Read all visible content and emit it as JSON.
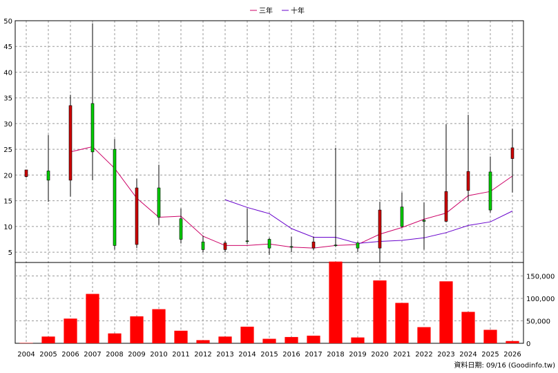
{
  "legend": {
    "items": [
      {
        "label": "三年",
        "color": "#cc0066"
      },
      {
        "label": "十年",
        "color": "#6600cc"
      }
    ]
  },
  "footer": {
    "source_label": "資料日期: 09/16 (Goodinfo.tw)"
  },
  "chart_data": {
    "type": "candlestick",
    "categories": [
      "2004",
      "2005",
      "2006",
      "2007",
      "2008",
      "2009",
      "2010",
      "2011",
      "2012",
      "2013",
      "2014",
      "2015",
      "2016",
      "2017",
      "2018",
      "2019",
      "2020",
      "2021",
      "2022",
      "2023",
      "2024",
      "2025",
      "2026"
    ],
    "price_axis": {
      "ylim": [
        3,
        50
      ],
      "ticks": [
        5,
        10,
        15,
        20,
        25,
        30,
        35,
        40,
        45,
        50
      ]
    },
    "volume_axis": {
      "ylim": [
        0,
        180000
      ],
      "ticks": [
        0,
        50000,
        100000,
        150000
      ],
      "tick_labels": [
        "0",
        "50,000",
        "100,000",
        "150,000"
      ]
    },
    "up_color": "#00cc00",
    "down_color": "#cc0000",
    "candles": [
      {
        "year": "2004",
        "open": 21.0,
        "close": 19.7,
        "high": 21.0,
        "low": 19.5
      },
      {
        "year": "2005",
        "open": 19.0,
        "close": 20.8,
        "high": 27.8,
        "low": 14.8
      },
      {
        "year": "2006",
        "open": 33.5,
        "close": 19.0,
        "high": 35.6,
        "low": 15.8
      },
      {
        "year": "2007",
        "open": 24.5,
        "close": 33.9,
        "high": 49.5,
        "low": 19.0
      },
      {
        "year": "2008",
        "open": 6.3,
        "close": 25.0,
        "high": 27.0,
        "low": 5.5
      },
      {
        "year": "2009",
        "open": 17.5,
        "close": 6.5,
        "high": 19.3,
        "low": 5.8
      },
      {
        "year": "2010",
        "open": 11.8,
        "close": 17.5,
        "high": 22.0,
        "low": 10.3
      },
      {
        "year": "2011",
        "open": 7.5,
        "close": 11.5,
        "high": 13.5,
        "low": 6.7
      },
      {
        "year": "2012",
        "open": 5.5,
        "close": 7.0,
        "high": 8.2,
        "low": 5.0
      },
      {
        "year": "2013",
        "open": 6.8,
        "close": 5.5,
        "high": 7.2,
        "low": 5.0
      },
      {
        "year": "2014",
        "open": 7.1,
        "close": 7.2,
        "high": 13.5,
        "low": 6.6
      },
      {
        "year": "2015",
        "open": 5.8,
        "close": 7.5,
        "high": 7.8,
        "low": 4.5
      },
      {
        "year": "2016",
        "open": 6.0,
        "close": 6.1,
        "high": 8.0,
        "low": 5.0
      },
      {
        "year": "2017",
        "open": 7.0,
        "close": 5.8,
        "high": 8.0,
        "low": 5.4
      },
      {
        "year": "2018",
        "open": 6.3,
        "close": 6.4,
        "high": 25.3,
        "low": 6.0
      },
      {
        "year": "2019",
        "open": 5.8,
        "close": 6.8,
        "high": 7.0,
        "low": 5.0
      },
      {
        "year": "2020",
        "open": 13.2,
        "close": 5.8,
        "high": 14.8,
        "low": 3.0
      },
      {
        "year": "2021",
        "open": 10.0,
        "close": 13.8,
        "high": 16.6,
        "low": 9.8
      },
      {
        "year": "2022",
        "open": 11.0,
        "close": 11.2,
        "high": 14.7,
        "low": 5.5
      },
      {
        "year": "2023",
        "open": 16.8,
        "close": 11.0,
        "high": 29.9,
        "low": 10.8
      },
      {
        "year": "2024",
        "open": 20.7,
        "close": 17.0,
        "high": 31.7,
        "low": 15.0
      },
      {
        "year": "2025",
        "open": 13.2,
        "close": 20.6,
        "high": 23.6,
        "low": 12.7
      },
      {
        "year": "2026",
        "open": 25.3,
        "close": 23.2,
        "high": 29.0,
        "low": 16.6
      }
    ],
    "series": [
      {
        "name": "三年",
        "color": "#cc0066",
        "values": [
          null,
          null,
          24.5,
          25.5,
          21.3,
          15.5,
          11.8,
          12.0,
          8.1,
          6.3,
          6.3,
          6.6,
          6.0,
          5.8,
          6.3,
          6.5,
          8.5,
          9.8,
          11.4,
          12.6,
          16.0,
          16.8,
          19.8
        ]
      },
      {
        "name": "十年",
        "color": "#6600cc",
        "values": [
          null,
          null,
          null,
          null,
          null,
          null,
          null,
          null,
          null,
          15.2,
          13.7,
          12.5,
          9.6,
          7.9,
          7.9,
          6.7,
          7.1,
          7.3,
          7.8,
          8.8,
          10.2,
          10.9,
          13.0
        ]
      }
    ],
    "volume": {
      "color": "#ff0000",
      "values": [
        800,
        15000,
        55000,
        110000,
        22000,
        60000,
        76000,
        28000,
        7000,
        15000,
        37000,
        10000,
        14000,
        17000,
        182000,
        13000,
        140000,
        90000,
        36000,
        138000,
        70000,
        30000,
        5000
      ]
    },
    "grid": true,
    "legend_position": "top-center"
  }
}
